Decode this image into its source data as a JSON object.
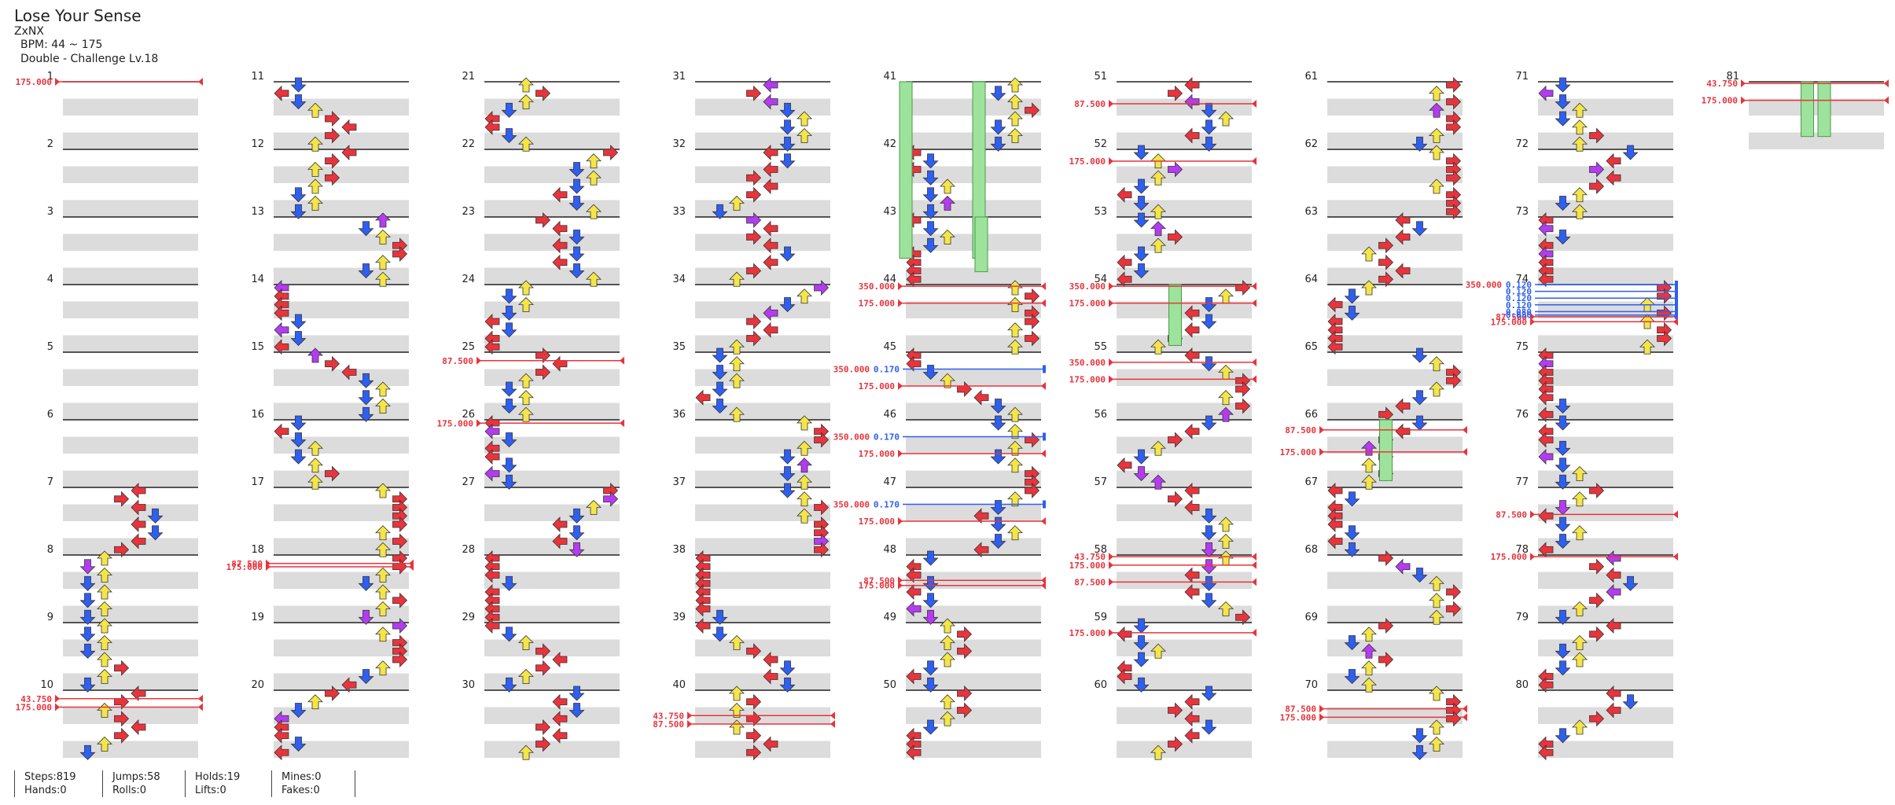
{
  "song": {
    "title": "Lose Your Sense",
    "artist": "ZxNX",
    "bpm": "BPM: 44 ~ 175",
    "difficulty": "Double - Challenge Lv.18"
  },
  "stats": [
    {
      "top": "Steps:819",
      "bottom": "Hands:0"
    },
    {
      "top": "Jumps:58",
      "bottom": "Rolls:0"
    },
    {
      "top": "Holds:19",
      "bottom": "Lifts:0"
    },
    {
      "top": "Mines:0",
      "bottom": "Fakes:0"
    }
  ],
  "colors": {
    "red": "#e8343c",
    "blue": "#2f5ff0",
    "yellow": "#f3e54a",
    "purple": "#b33cf0",
    "orange": "#f49447",
    "cyan": "#3ee0e8",
    "magenta": "#e83cd8",
    "hold": "#9ee39b"
  },
  "measures": [
    {
      "n": "1"
    },
    {
      "n": "2"
    },
    {
      "n": "3"
    },
    {
      "n": "4"
    },
    {
      "n": "5"
    },
    {
      "n": "6"
    },
    {
      "n": "7"
    },
    {
      "n": "8"
    },
    {
      "n": "9"
    },
    {
      "n": "10"
    },
    {
      "n": "11"
    },
    {
      "n": "12"
    },
    {
      "n": "13"
    },
    {
      "n": "14"
    },
    {
      "n": "15"
    },
    {
      "n": "16"
    },
    {
      "n": "17"
    },
    {
      "n": "18"
    },
    {
      "n": "19"
    },
    {
      "n": "20"
    },
    {
      "n": "21"
    },
    {
      "n": "22"
    },
    {
      "n": "23"
    },
    {
      "n": "24"
    },
    {
      "n": "25"
    },
    {
      "n": "26"
    },
    {
      "n": "27"
    },
    {
      "n": "28"
    },
    {
      "n": "29"
    },
    {
      "n": "30"
    },
    {
      "n": "31"
    },
    {
      "n": "32"
    },
    {
      "n": "33"
    },
    {
      "n": "34"
    },
    {
      "n": "35"
    },
    {
      "n": "36"
    },
    {
      "n": "37"
    },
    {
      "n": "38"
    },
    {
      "n": "39"
    },
    {
      "n": "40"
    },
    {
      "n": "41"
    },
    {
      "n": "42"
    },
    {
      "n": "43"
    },
    {
      "n": "44"
    },
    {
      "n": "45"
    },
    {
      "n": "46"
    },
    {
      "n": "47"
    },
    {
      "n": "48"
    },
    {
      "n": "49"
    },
    {
      "n": "50"
    },
    {
      "n": "51"
    },
    {
      "n": "52"
    },
    {
      "n": "53"
    },
    {
      "n": "54"
    },
    {
      "n": "55"
    },
    {
      "n": "56"
    },
    {
      "n": "57"
    },
    {
      "n": "58"
    },
    {
      "n": "59"
    },
    {
      "n": "60"
    },
    {
      "n": "61"
    },
    {
      "n": "62"
    },
    {
      "n": "63"
    },
    {
      "n": "64"
    },
    {
      "n": "65"
    },
    {
      "n": "66"
    },
    {
      "n": "67"
    },
    {
      "n": "68"
    },
    {
      "n": "69"
    },
    {
      "n": "70"
    },
    {
      "n": "71"
    },
    {
      "n": "72"
    },
    {
      "n": "73"
    },
    {
      "n": "74"
    },
    {
      "n": "75"
    },
    {
      "n": "76"
    },
    {
      "n": "77"
    },
    {
      "n": "78"
    },
    {
      "n": "79"
    },
    {
      "n": "80"
    },
    {
      "n": "81"
    }
  ],
  "bpm_changes": [
    {
      "measure": 1,
      "beat": 0,
      "label": "175.000"
    },
    {
      "measure": 10,
      "beat": 0.5,
      "label": "43.750"
    },
    {
      "measure": 10,
      "beat": 1.0,
      "label": "175.000"
    },
    {
      "measure": 18,
      "beat": 0.5,
      "label": "87.500"
    },
    {
      "measure": 18,
      "beat": 0.7,
      "label": "175.000"
    },
    {
      "measure": 25,
      "beat": 0.5,
      "label": "87.500"
    },
    {
      "measure": 26,
      "beat": 0.2,
      "label": "175.000"
    },
    {
      "measure": 40,
      "beat": 1.5,
      "label": "43.750"
    },
    {
      "measure": 40,
      "beat": 2.0,
      "label": "87.500"
    },
    {
      "measure": 44,
      "beat": 0.1,
      "label": "350.000"
    },
    {
      "measure": 44,
      "beat": 1.1,
      "label": "175.000"
    },
    {
      "measure": 45,
      "beat": 2.0,
      "label": "175.000"
    },
    {
      "measure": 46,
      "beat": 2.0,
      "label": "175.000"
    },
    {
      "measure": 47,
      "beat": 2.0,
      "label": "175.000"
    },
    {
      "measure": 48,
      "beat": 1.5,
      "label": "87.500"
    },
    {
      "measure": 48,
      "beat": 1.8,
      "label": "175.000"
    },
    {
      "measure": 51,
      "beat": 1.3,
      "label": "87.500"
    },
    {
      "measure": 52,
      "beat": 0.7,
      "label": "175.000"
    },
    {
      "measure": 54,
      "beat": 0.1,
      "label": "350.000"
    },
    {
      "measure": 54,
      "beat": 1.1,
      "label": "175.000"
    },
    {
      "measure": 55,
      "beat": 0.6,
      "label": "350.000"
    },
    {
      "measure": 55,
      "beat": 1.6,
      "label": "175.000"
    },
    {
      "measure": 58,
      "beat": 0.1,
      "label": "43.750"
    },
    {
      "measure": 58,
      "beat": 0.6,
      "label": "175.000"
    },
    {
      "measure": 58,
      "beat": 1.6,
      "label": "87.500"
    },
    {
      "measure": 59,
      "beat": 0.6,
      "label": "175.000"
    },
    {
      "measure": 66,
      "beat": 0.6,
      "label": "87.500"
    },
    {
      "measure": 66,
      "beat": 1.9,
      "label": "175.000"
    },
    {
      "measure": 70,
      "beat": 1.1,
      "label": "87.500"
    },
    {
      "measure": 70,
      "beat": 1.6,
      "label": "175.000"
    },
    {
      "measure": 77,
      "beat": 1.6,
      "label": "87.500"
    },
    {
      "measure": 78,
      "beat": 0.1,
      "label": "175.000"
    },
    {
      "measure": 74,
      "beat": 1.9,
      "label": "87.500"
    },
    {
      "measure": 74,
      "beat": 2.2,
      "label": "175.000"
    },
    {
      "measure": 81,
      "beat": 0.1,
      "label": "43.750"
    },
    {
      "measure": 81,
      "beat": 1.1,
      "label": "175.000"
    }
  ],
  "stops": [
    {
      "measure": 45,
      "beat": 1.0,
      "label": "350.000",
      "value": "0.170"
    },
    {
      "measure": 46,
      "beat": 1.0,
      "label": "350.000",
      "value": "0.170"
    },
    {
      "measure": 47,
      "beat": 1.0,
      "label": "350.000",
      "value": "0.170"
    },
    {
      "measure": 74,
      "beat": 0.0,
      "label": "350.000",
      "value": "0.120"
    },
    {
      "measure": 74,
      "beat": 0.4,
      "label": "",
      "value": "0.120"
    },
    {
      "measure": 74,
      "beat": 0.8,
      "label": "",
      "value": "0.120"
    },
    {
      "measure": 74,
      "beat": 1.2,
      "label": "",
      "value": "0.120"
    },
    {
      "measure": 74,
      "beat": 1.6,
      "label": "",
      "value": "0.080"
    },
    {
      "measure": 74,
      "beat": 1.8,
      "label": "",
      "value": "0.080"
    }
  ]
}
